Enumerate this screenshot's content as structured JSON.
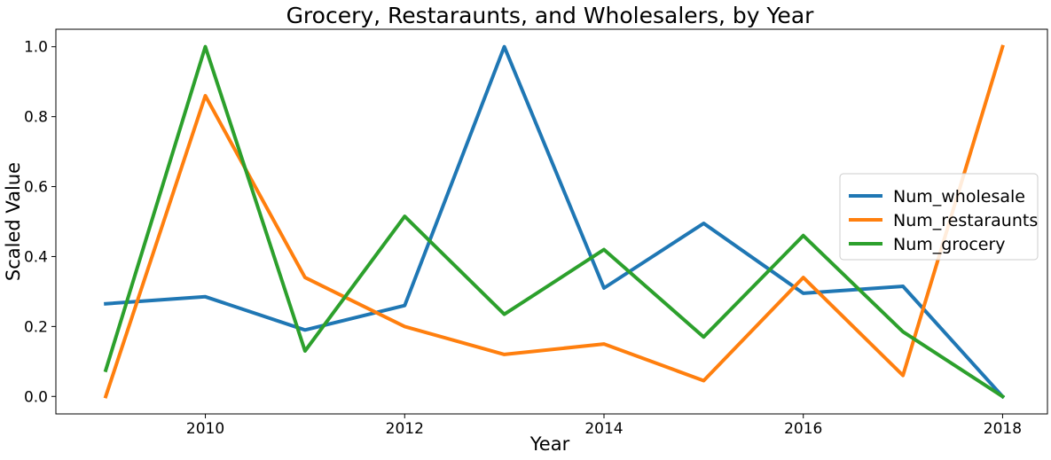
{
  "chart_data": {
    "type": "line",
    "title": "Grocery, Restaraunts, and Wholesalers, by Year",
    "xlabel": "Year",
    "ylabel": "Scaled Value",
    "xlim": [
      2008.5,
      2018.45
    ],
    "ylim": [
      -0.05,
      1.05
    ],
    "x_ticks": [
      2010,
      2012,
      2014,
      2016,
      2018
    ],
    "y_ticks": [
      0.0,
      0.2,
      0.4,
      0.6,
      0.8,
      1.0
    ],
    "x_tick_labels": [
      "2010",
      "2012",
      "2014",
      "2016",
      "2018"
    ],
    "y_tick_labels": [
      "0.0",
      "0.2",
      "0.4",
      "0.6",
      "0.8",
      "1.0"
    ],
    "grid": false,
    "legend_position": "center-right",
    "x": [
      2009,
      2010,
      2011,
      2012,
      2013,
      2014,
      2015,
      2016,
      2017,
      2018
    ],
    "series": [
      {
        "name": "Num_wholesale",
        "color": "#1f77b4",
        "values": [
          0.265,
          0.285,
          0.19,
          0.26,
          1.0,
          0.31,
          0.495,
          0.295,
          0.315,
          0.0
        ]
      },
      {
        "name": "Num_restaraunts",
        "color": "#ff7f0e",
        "values": [
          0.0,
          0.86,
          0.34,
          0.2,
          0.12,
          0.15,
          0.045,
          0.34,
          0.06,
          1.0
        ]
      },
      {
        "name": "Num_grocery",
        "color": "#2ca02c",
        "values": [
          0.075,
          1.0,
          0.13,
          0.515,
          0.235,
          0.42,
          0.17,
          0.46,
          0.185,
          0.0
        ]
      }
    ]
  }
}
